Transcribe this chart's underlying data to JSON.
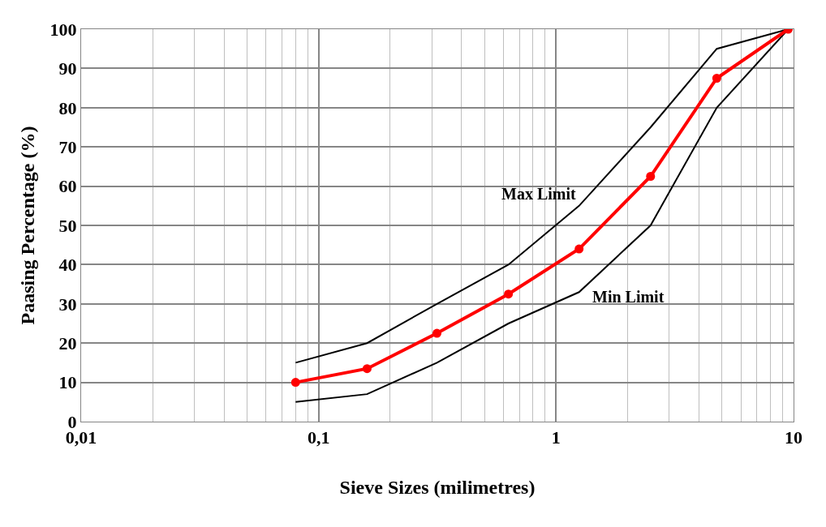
{
  "chart_data": {
    "type": "line",
    "xlabel": "Sieve Sizes (milimetres)",
    "ylabel": "Paasing Percentage (%)",
    "x": [
      0.08,
      0.16,
      0.315,
      0.63,
      1.25,
      2.5,
      4.75,
      9.5
    ],
    "series": [
      {
        "name": "Max Limit",
        "color": "#000000",
        "values": [
          15,
          20,
          30,
          40,
          55,
          75,
          95,
          100
        ],
        "marker": "none"
      },
      {
        "name": "Min Limit",
        "color": "#000000",
        "values": [
          5,
          7,
          15,
          25,
          33,
          50,
          80,
          100
        ],
        "marker": "none"
      },
      {
        "color": "#ff0000",
        "values": [
          10,
          13.5,
          22.5,
          32.5,
          44,
          62.5,
          87.5,
          100
        ],
        "marker": "circle"
      }
    ],
    "log": "x",
    "xlim": [
      0.01,
      10
    ],
    "xticks": [
      {
        "value": 0.01,
        "label": "0,01"
      },
      {
        "value": 0.1,
        "label": "0,1"
      },
      1,
      10
    ],
    "ylim": [
      0,
      100
    ],
    "yticks": [
      0,
      10,
      20,
      30,
      40,
      50,
      60,
      70,
      80,
      90,
      100
    ],
    "grid": true,
    "legend": false
  }
}
